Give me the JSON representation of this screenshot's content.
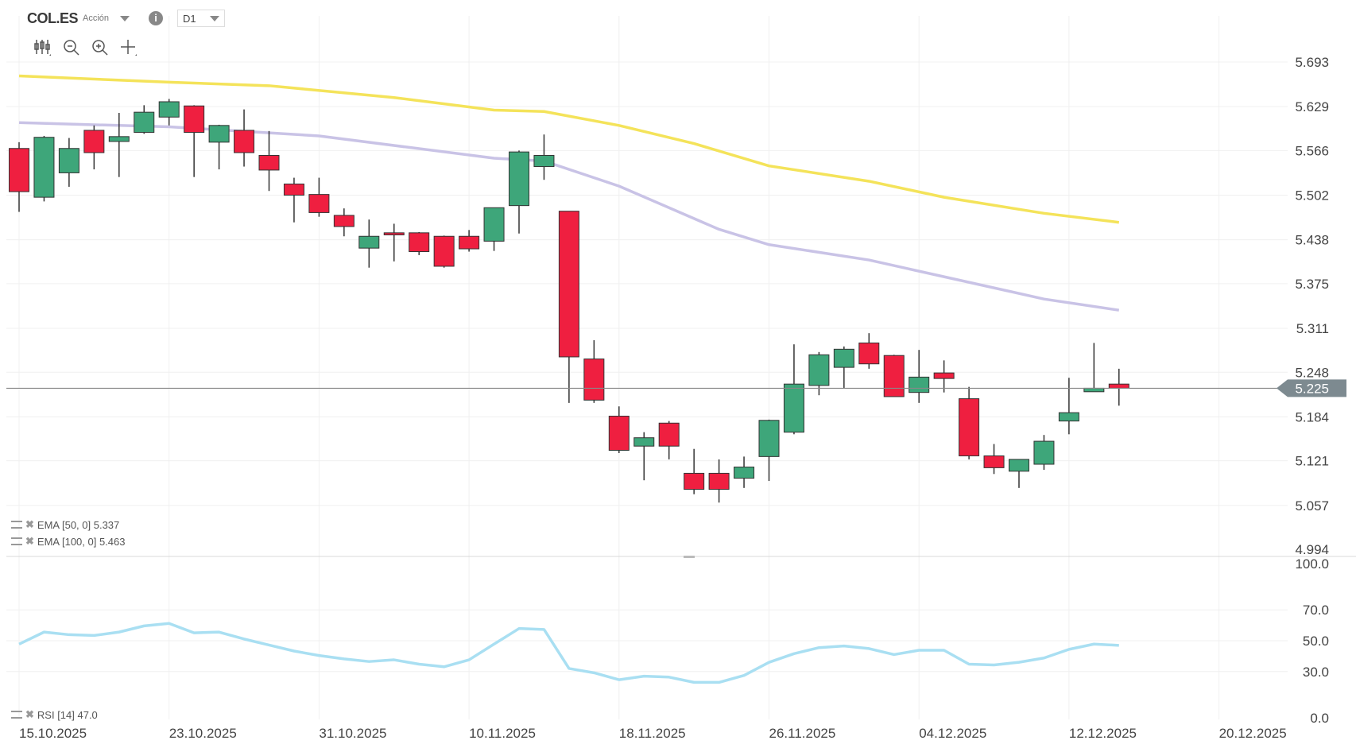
{
  "header": {
    "symbol": "COL.ES",
    "type": "Acción",
    "info_icon": "info-icon",
    "timeframe": "D1"
  },
  "toolbar": {
    "icons": [
      "chart-type-icon",
      "zoom-out-icon",
      "zoom-in-icon",
      "crosshair-move-icon"
    ]
  },
  "legend": {
    "ema50": "EMA [50, 0] 5.337",
    "ema100": "EMA [100, 0] 5.463",
    "rsi": "RSI [14] 47.0"
  },
  "colors": {
    "up": "#3ea67a",
    "down": "#ef1f40",
    "ema50": "#c9c3e6",
    "ema100": "#f4e35a",
    "rsi": "#a9dff2",
    "price_tag": "#7d8a90"
  },
  "chart_data": [
    {
      "type": "candlestick",
      "title": "COL.ES D1",
      "current_price": "5.225",
      "price_ticks": [
        "5.693",
        "5.629",
        "5.566",
        "5.502",
        "5.438",
        "5.375",
        "5.311",
        "5.248",
        "5.184",
        "5.121",
        "5.057",
        "4.994"
      ],
      "ylim": [
        4.994,
        5.693
      ],
      "date_ticks": [
        {
          "index": 0,
          "label": "15.10.2025"
        },
        {
          "index": 6,
          "label": "23.10.2025"
        },
        {
          "index": 12,
          "label": "31.10.2025"
        },
        {
          "index": 18,
          "label": "10.11.2025"
        },
        {
          "index": 24,
          "label": "18.11.2025"
        },
        {
          "index": 30,
          "label": "26.11.2025"
        },
        {
          "index": 36,
          "label": "04.12.2025"
        },
        {
          "index": 42,
          "label": "12.12.2025"
        },
        {
          "index": 48,
          "label": "20.12.2025"
        }
      ],
      "ohlc": [
        [
          5.569,
          5.578,
          5.478,
          5.507
        ],
        [
          5.499,
          5.587,
          5.493,
          5.585
        ],
        [
          5.534,
          5.584,
          5.514,
          5.569
        ],
        [
          5.595,
          5.602,
          5.539,
          5.563
        ],
        [
          5.579,
          5.62,
          5.528,
          5.586
        ],
        [
          5.592,
          5.631,
          5.59,
          5.621
        ],
        [
          5.614,
          5.64,
          5.602,
          5.636
        ],
        [
          5.63,
          5.631,
          5.528,
          5.592
        ],
        [
          5.578,
          5.603,
          5.539,
          5.602
        ],
        [
          5.595,
          5.625,
          5.543,
          5.563
        ],
        [
          5.559,
          5.594,
          5.508,
          5.538
        ],
        [
          5.518,
          5.527,
          5.463,
          5.502
        ],
        [
          5.503,
          5.527,
          5.471,
          5.477
        ],
        [
          5.473,
          5.483,
          5.443,
          5.457
        ],
        [
          5.426,
          5.467,
          5.398,
          5.443
        ],
        [
          5.448,
          5.461,
          5.407,
          5.445
        ],
        [
          5.448,
          5.449,
          5.416,
          5.421
        ],
        [
          5.443,
          5.444,
          5.398,
          5.4
        ],
        [
          5.443,
          5.452,
          5.421,
          5.425
        ],
        [
          5.436,
          5.484,
          5.422,
          5.484
        ],
        [
          5.487,
          5.566,
          5.447,
          5.564
        ],
        [
          5.543,
          5.589,
          5.524,
          5.559
        ],
        [
          5.479,
          5.479,
          5.204,
          5.27
        ],
        [
          5.267,
          5.294,
          5.204,
          5.208
        ],
        [
          5.185,
          5.199,
          5.132,
          5.136
        ],
        [
          5.142,
          5.162,
          5.093,
          5.154
        ],
        [
          5.175,
          5.178,
          5.123,
          5.142
        ],
        [
          5.103,
          5.138,
          5.073,
          5.08
        ],
        [
          5.103,
          5.123,
          5.061,
          5.08
        ],
        [
          5.096,
          5.127,
          5.082,
          5.112
        ],
        [
          5.127,
          5.18,
          5.092,
          5.179
        ],
        [
          5.162,
          5.288,
          5.159,
          5.231
        ],
        [
          5.229,
          5.277,
          5.215,
          5.273
        ],
        [
          5.255,
          5.285,
          5.225,
          5.281
        ],
        [
          5.29,
          5.304,
          5.253,
          5.26
        ],
        [
          5.272,
          5.273,
          5.213,
          5.213
        ],
        [
          5.219,
          5.28,
          5.204,
          5.241
        ],
        [
          5.247,
          5.265,
          5.219,
          5.239
        ],
        [
          5.21,
          5.227,
          5.123,
          5.128
        ],
        [
          5.128,
          5.145,
          5.102,
          5.111
        ],
        [
          5.106,
          5.123,
          5.082,
          5.123
        ],
        [
          5.116,
          5.158,
          5.108,
          5.149
        ],
        [
          5.178,
          5.24,
          5.159,
          5.19
        ],
        [
          5.22,
          5.29,
          5.22,
          5.225
        ],
        [
          5.231,
          5.253,
          5.2,
          5.225
        ]
      ],
      "series": [
        {
          "name": "EMA [100, 0]",
          "points": [
            [
              0,
              5.673
            ],
            [
              6,
              5.664
            ],
            [
              10,
              5.659
            ],
            [
              15,
              5.642
            ],
            [
              19,
              5.624
            ],
            [
              21,
              5.622
            ],
            [
              24,
              5.602
            ],
            [
              27,
              5.576
            ],
            [
              30,
              5.544
            ],
            [
              34,
              5.522
            ],
            [
              37,
              5.499
            ],
            [
              41,
              5.476
            ],
            [
              44,
              5.463
            ]
          ]
        },
        {
          "name": "EMA [50, 0]",
          "points": [
            [
              0,
              5.606
            ],
            [
              6,
              5.6
            ],
            [
              12,
              5.587
            ],
            [
              19,
              5.555
            ],
            [
              21,
              5.551
            ],
            [
              24,
              5.515
            ],
            [
              28,
              5.453
            ],
            [
              30,
              5.431
            ],
            [
              34,
              5.409
            ],
            [
              37,
              5.385
            ],
            [
              41,
              5.353
            ],
            [
              44,
              5.337
            ]
          ]
        }
      ]
    },
    {
      "type": "line",
      "title": "RSI [14]",
      "ylim": [
        0,
        100
      ],
      "y_ticks": [
        "100.0",
        "70.0",
        "50.0",
        "30.0",
        "0.0"
      ],
      "values": [
        47.8,
        55.6,
        53.9,
        53.4,
        55.6,
        59.6,
        61.2,
        55.1,
        55.6,
        51.1,
        47.2,
        43.3,
        40.4,
        38.2,
        36.5,
        37.6,
        34.8,
        33.1,
        37.6,
        47.8,
        57.9,
        57.3,
        32.0,
        29.2,
        24.7,
        27.0,
        26.4,
        23.0,
        23.0,
        27.5,
        36.0,
        41.6,
        45.5,
        46.6,
        44.9,
        41.0,
        43.8,
        43.8,
        34.8,
        34.3,
        36.0,
        38.8,
        44.4,
        47.8,
        47.0
      ]
    }
  ]
}
